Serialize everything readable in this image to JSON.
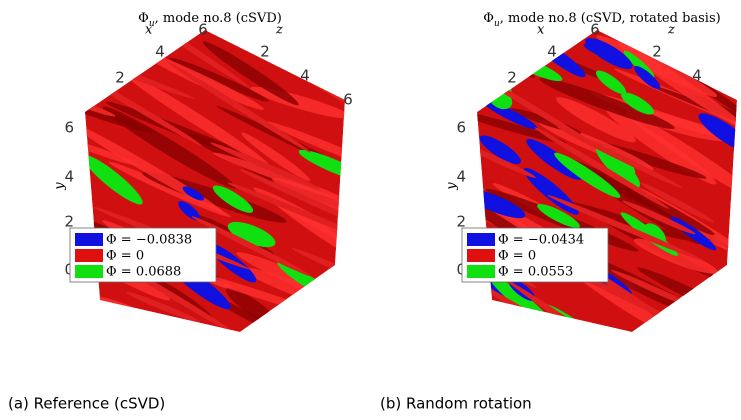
{
  "panels": [
    {
      "title": {
        "symbol": "Φ",
        "subscript": "u",
        "rest": ", mode no.8 (cSVD)"
      },
      "x_label": "x",
      "z_label": "z",
      "y_label": "y",
      "x_ticks": [
        "2",
        "4",
        "6"
      ],
      "z_ticks": [
        "2",
        "4",
        "6"
      ],
      "y_ticks": [
        "6",
        "4",
        "2",
        "0"
      ],
      "legend": [
        "Φ = −0.0838",
        "Φ = 0",
        "Φ = 0.0688"
      ],
      "caption": "(a) Reference (cSVD)"
    },
    {
      "title": {
        "symbol": "Φ",
        "subscript": "u",
        "rest": ", mode no.8 (cSVD, rotated basis)"
      },
      "x_label": "x",
      "z_label": "z",
      "y_label": "y",
      "x_ticks": [
        "2",
        "4",
        "6"
      ],
      "z_ticks": [
        "2",
        "4"
      ],
      "y_ticks": [
        "6",
        "4",
        "2",
        "0"
      ],
      "legend": [
        "Φ = −0.0434",
        "Φ = 0",
        "Φ = 0.0553"
      ],
      "caption": "(b) Random rotation"
    }
  ]
}
